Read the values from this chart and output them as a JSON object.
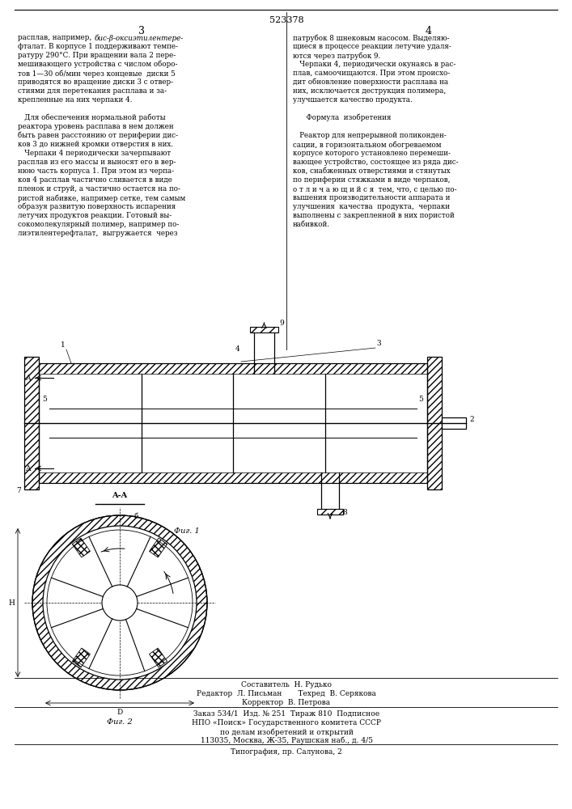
{
  "patent_number": "523378",
  "bg_color": "#ffffff",
  "line_color": "#000000",
  "text_color": "#000000",
  "fig1_label": "Фиг. 1",
  "fig2_label": "Фиг. 2",
  "footer_composer": "Составитель  Н. Рудько",
  "footer_editor": "Редактор  Л. Письман       Техред  В. Серякова",
  "footer_corrector": "Корректор  В. Петрова",
  "footer_order": "Заказ 534/1  Изд. № 251  Тираж 810  Подписное",
  "footer_npo": "НПО «Поиск» Государственного комитета СССР",
  "footer_dept": "по делам изобретений и открытий",
  "footer_addr": "113035, Москва, Ж-35, Раушская наб., д. 4/5",
  "footer_print": "Типография, пр. Салунова, 2"
}
